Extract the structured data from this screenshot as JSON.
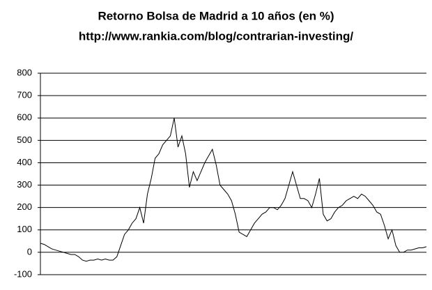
{
  "chart_data": {
    "type": "line",
    "title": "Retorno Bolsa de Madrid a 10 años (en %)",
    "subtitle": "http://www.rankia.com/blog/contrarian-investing/",
    "color": "#000000",
    "grid": true,
    "ylim": [
      -100,
      800
    ],
    "yticks": [
      -100,
      0,
      100,
      200,
      300,
      400,
      500,
      600,
      700,
      800
    ],
    "values": [
      40,
      35,
      25,
      15,
      10,
      5,
      0,
      -5,
      -10,
      -10,
      -20,
      -35,
      -40,
      -35,
      -35,
      -30,
      -35,
      -30,
      -35,
      -35,
      -20,
      30,
      80,
      100,
      130,
      150,
      200,
      130,
      260,
      330,
      420,
      440,
      480,
      500,
      520,
      600,
      470,
      520,
      440,
      290,
      360,
      320,
      360,
      400,
      430,
      460,
      390,
      300,
      280,
      260,
      230,
      170,
      90,
      80,
      70,
      100,
      130,
      150,
      170,
      180,
      200,
      200,
      190,
      210,
      240,
      300,
      360,
      300,
      240,
      240,
      230,
      200,
      260,
      330,
      170,
      140,
      150,
      180,
      200,
      210,
      230,
      240,
      250,
      240,
      260,
      250,
      230,
      210,
      180,
      170,
      120,
      60,
      100,
      30,
      0,
      0,
      10,
      10,
      15,
      20,
      20,
      25
    ]
  }
}
